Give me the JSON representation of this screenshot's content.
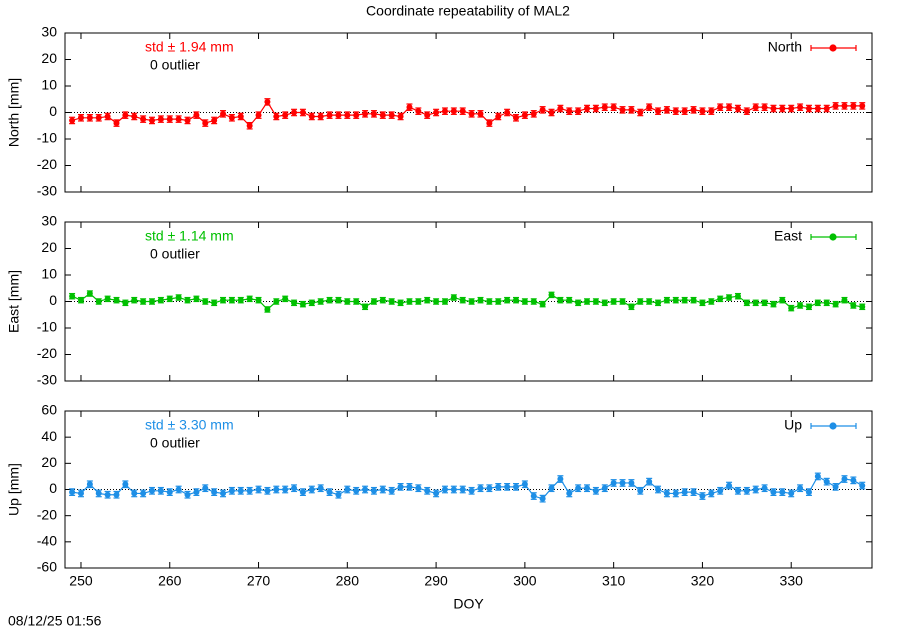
{
  "timestamp": "08/12/25 01:56",
  "chart_data": [
    {
      "type": "errorbar-line",
      "title": "Coordinate repeatability of MAL2",
      "ylabel": "North [mm]",
      "annotations": [
        "std ± 1.94 mm",
        "0 outlier"
      ],
      "legend": "top-right",
      "zeroaxis": true,
      "xlim": [
        248.2,
        339.1
      ],
      "xticks": [
        250,
        260,
        270,
        280,
        290,
        300,
        310,
        320,
        330
      ],
      "ylim": [
        -30,
        30
      ],
      "yticks": [
        -30,
        -20,
        -10,
        0,
        10,
        20,
        30
      ],
      "series": [
        {
          "name": "North",
          "color": "#ff0000",
          "error": 1.2,
          "x": [
            249,
            250,
            251,
            252,
            253,
            254,
            255,
            256,
            257,
            258,
            259,
            260,
            261,
            262,
            263,
            264,
            265,
            266,
            267,
            268,
            269,
            270,
            271,
            272,
            273,
            274,
            275,
            276,
            277,
            278,
            279,
            280,
            281,
            282,
            283,
            284,
            285,
            286,
            287,
            288,
            289,
            290,
            291,
            292,
            293,
            294,
            295,
            296,
            297,
            298,
            299,
            300,
            301,
            302,
            303,
            304,
            305,
            306,
            307,
            308,
            309,
            310,
            311,
            312,
            313,
            314,
            315,
            316,
            317,
            318,
            319,
            320,
            321,
            322,
            323,
            324,
            325,
            326,
            327,
            328,
            329,
            330,
            331,
            332,
            333,
            334,
            335,
            336,
            337,
            338
          ],
          "values": [
            -3,
            -2,
            -2,
            -2,
            -1.5,
            -4,
            -1,
            -1.5,
            -2.5,
            -3,
            -2.5,
            -2.5,
            -2.5,
            -3,
            -1,
            -4,
            -3,
            -0.5,
            -2,
            -1.5,
            -5,
            -1,
            4,
            -1.5,
            -1,
            0,
            0,
            -1.5,
            -1.5,
            -1,
            -1,
            -1,
            -1,
            -0.5,
            -0.5,
            -1,
            -1,
            -1.5,
            2,
            0.5,
            -1,
            0,
            0.5,
            0.5,
            0.5,
            -0.5,
            -0.5,
            -4,
            -1.5,
            0,
            -2,
            -1,
            -0.5,
            1,
            0,
            1.5,
            0.5,
            0.5,
            1.5,
            1.5,
            2,
            2,
            1,
            1,
            0,
            2,
            0.5,
            1,
            0.5,
            0.5,
            1,
            0.5,
            0.5,
            2,
            2,
            1.5,
            0.5,
            2,
            2,
            1.5,
            1.5,
            1.5,
            2,
            1.5,
            1.5,
            1.5,
            2.5,
            2.5,
            2.5,
            2.5
          ]
        }
      ]
    },
    {
      "type": "errorbar-line",
      "ylabel": "East [mm]",
      "annotations": [
        "std ± 1.14 mm",
        "0 outlier"
      ],
      "legend": "top-right",
      "zeroaxis": true,
      "xlim": [
        248.2,
        339.1
      ],
      "xticks": [
        250,
        260,
        270,
        280,
        290,
        300,
        310,
        320,
        330
      ],
      "ylim": [
        -30,
        30
      ],
      "yticks": [
        -30,
        -20,
        -10,
        0,
        10,
        20,
        30
      ],
      "series": [
        {
          "name": "East",
          "color": "#00c000",
          "error": 1.0,
          "x": [
            249,
            250,
            251,
            252,
            253,
            254,
            255,
            256,
            257,
            258,
            259,
            260,
            261,
            262,
            263,
            264,
            265,
            266,
            267,
            268,
            269,
            270,
            271,
            272,
            273,
            274,
            275,
            276,
            277,
            278,
            279,
            280,
            281,
            282,
            283,
            284,
            285,
            286,
            287,
            288,
            289,
            290,
            291,
            292,
            293,
            294,
            295,
            296,
            297,
            298,
            299,
            300,
            301,
            302,
            303,
            304,
            305,
            306,
            307,
            308,
            309,
            310,
            311,
            312,
            313,
            314,
            315,
            316,
            317,
            318,
            319,
            320,
            321,
            322,
            323,
            324,
            325,
            326,
            327,
            328,
            329,
            330,
            331,
            332,
            333,
            334,
            335,
            336,
            337,
            338
          ],
          "values": [
            2,
            0.5,
            3,
            0,
            1,
            0.5,
            -0.5,
            0.5,
            0,
            0,
            0.5,
            1,
            1.5,
            0.5,
            1,
            0,
            -0.5,
            0.5,
            0.5,
            0.5,
            1,
            0.5,
            -3,
            0,
            1,
            -0.5,
            -1,
            -0.5,
            0,
            0.5,
            0.5,
            0,
            0,
            -2,
            0,
            0.5,
            0,
            -0.5,
            0,
            0,
            0.5,
            0,
            0,
            1.5,
            0.5,
            0,
            0.5,
            0,
            0,
            0.5,
            0.5,
            0,
            0,
            -1,
            2.5,
            0.5,
            0.5,
            -0.5,
            0,
            0,
            -0.5,
            0,
            0,
            -2,
            0,
            0,
            -0.5,
            0.5,
            0.5,
            0.5,
            0.5,
            -0.5,
            0,
            1,
            1.5,
            2,
            -0.5,
            -0.5,
            -0.5,
            -1,
            0.5,
            -2.5,
            -1.5,
            -2,
            -0.5,
            -0.5,
            -1,
            0.5,
            -1.5,
            -2
          ]
        }
      ]
    },
    {
      "type": "errorbar-line",
      "ylabel": "Up [mm]",
      "xlabel": "DOY",
      "annotations": [
        "std ± 3.30 mm",
        "0 outlier"
      ],
      "legend": "top-right",
      "zeroaxis": true,
      "xlim": [
        248.2,
        339.1
      ],
      "xticks": [
        250,
        260,
        270,
        280,
        290,
        300,
        310,
        320,
        330
      ],
      "ylim": [
        -60,
        60
      ],
      "yticks": [
        -60,
        -40,
        -20,
        0,
        20,
        40,
        60
      ],
      "series": [
        {
          "name": "Up",
          "color": "#1e8fe6",
          "error": 2.5,
          "x": [
            249,
            250,
            251,
            252,
            253,
            254,
            255,
            256,
            257,
            258,
            259,
            260,
            261,
            262,
            263,
            264,
            265,
            266,
            267,
            268,
            269,
            270,
            271,
            272,
            273,
            274,
            275,
            276,
            277,
            278,
            279,
            280,
            281,
            282,
            283,
            284,
            285,
            286,
            287,
            288,
            289,
            290,
            291,
            292,
            293,
            294,
            295,
            296,
            297,
            298,
            299,
            300,
            301,
            302,
            303,
            304,
            305,
            306,
            307,
            308,
            309,
            310,
            311,
            312,
            313,
            314,
            315,
            316,
            317,
            318,
            319,
            320,
            321,
            322,
            323,
            324,
            325,
            326,
            327,
            328,
            329,
            330,
            331,
            332,
            333,
            334,
            335,
            336,
            337,
            338
          ],
          "values": [
            -2,
            -3,
            4,
            -3,
            -4,
            -4,
            4,
            -3,
            -3,
            -1,
            -1,
            -2,
            0,
            -4,
            -2,
            1,
            -2,
            -3,
            -1,
            -1,
            -1,
            0,
            -1,
            0,
            0,
            1,
            -2,
            0,
            1,
            -2,
            -4,
            0,
            -1,
            0,
            -1,
            0,
            -1,
            2,
            2,
            1,
            -1,
            -3,
            0,
            0,
            0,
            -1,
            1,
            1,
            2,
            2,
            2,
            4,
            -5,
            -7,
            1,
            8,
            -3,
            1,
            1,
            -1,
            1,
            5,
            5,
            5,
            -1,
            6,
            0,
            -3,
            -3,
            -2,
            -2,
            -5,
            -3,
            -1,
            3,
            -1,
            -1,
            0,
            1,
            -2,
            -2,
            -3,
            1,
            -2,
            10,
            6,
            2,
            8,
            7,
            3
          ]
        }
      ]
    }
  ]
}
